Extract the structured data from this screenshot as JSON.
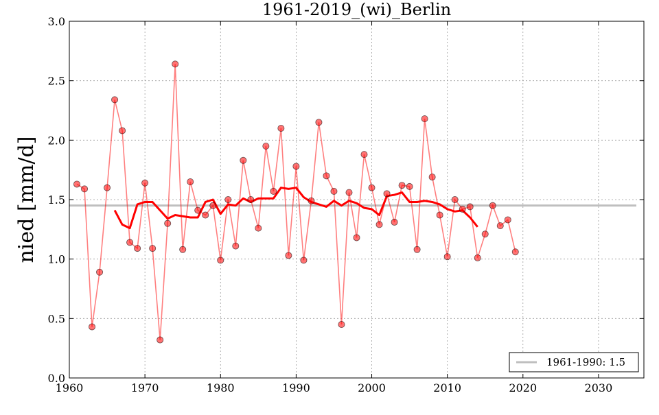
{
  "chart_data": {
    "type": "line",
    "title": "1961-2019_(wi)_Berlin",
    "xlabel": "",
    "ylabel": "nied [mm/d]",
    "xlim": [
      1960,
      2036
    ],
    "ylim": [
      0.0,
      3.0
    ],
    "xticks": [
      1960,
      1970,
      1980,
      1990,
      2000,
      2010,
      2020,
      2030
    ],
    "yticks": [
      "0.0",
      "0.5",
      "1.0",
      "1.5",
      "2.0",
      "2.5",
      "3.0"
    ],
    "grid": true,
    "legend_position": "bottom-right",
    "series": [
      {
        "name": "",
        "kind": "line-markers",
        "color": "#ff0000",
        "x": [
          1961,
          1962,
          1963,
          1964,
          1965,
          1966,
          1967,
          1968,
          1969,
          1970,
          1971,
          1972,
          1973,
          1974,
          1975,
          1976,
          1977,
          1978,
          1979,
          1980,
          1981,
          1982,
          1983,
          1984,
          1985,
          1986,
          1987,
          1988,
          1989,
          1990,
          1991,
          1992,
          1993,
          1994,
          1995,
          1996,
          1997,
          1998,
          1999,
          2000,
          2001,
          2002,
          2003,
          2004,
          2005,
          2006,
          2007,
          2008,
          2009,
          2010,
          2011,
          2012,
          2013,
          2014,
          2015,
          2016,
          2017,
          2018,
          2019
        ],
        "y": [
          1.63,
          1.59,
          0.43,
          0.89,
          1.6,
          2.34,
          2.08,
          1.14,
          1.09,
          1.64,
          1.09,
          0.32,
          1.3,
          2.64,
          1.08,
          1.65,
          1.41,
          1.37,
          1.45,
          0.99,
          1.5,
          1.11,
          1.83,
          1.5,
          1.26,
          1.95,
          1.57,
          2.1,
          1.03,
          1.78,
          0.99,
          1.49,
          2.15,
          1.7,
          1.57,
          0.45,
          1.56,
          1.18,
          1.88,
          1.6,
          1.29,
          1.55,
          1.31,
          1.62,
          1.61,
          1.08,
          2.18,
          1.69,
          1.37,
          1.02,
          1.5,
          1.42,
          1.44,
          1.01,
          1.21,
          1.45,
          1.28,
          1.33,
          1.06
        ]
      },
      {
        "name": "",
        "kind": "moving-average",
        "color": "#ff0000",
        "x": [
          1966,
          1967,
          1968,
          1969,
          1970,
          1971,
          1972,
          1973,
          1974,
          1975,
          1976,
          1977,
          1978,
          1979,
          1980,
          1981,
          1982,
          1983,
          1984,
          1985,
          1986,
          1987,
          1988,
          1989,
          1990,
          1991,
          1992,
          1993,
          1994,
          1995,
          1996,
          1997,
          1998,
          1999,
          2000,
          2001,
          2002,
          2003,
          2004,
          2005,
          2006,
          2007,
          2008,
          2009,
          2010,
          2011,
          2012,
          2013,
          2014
        ],
        "y": [
          1.41,
          1.29,
          1.26,
          1.46,
          1.48,
          1.48,
          1.41,
          1.34,
          1.37,
          1.36,
          1.35,
          1.35,
          1.48,
          1.5,
          1.38,
          1.46,
          1.45,
          1.51,
          1.48,
          1.51,
          1.51,
          1.51,
          1.6,
          1.59,
          1.6,
          1.52,
          1.48,
          1.46,
          1.44,
          1.49,
          1.45,
          1.49,
          1.47,
          1.43,
          1.42,
          1.37,
          1.53,
          1.54,
          1.56,
          1.48,
          1.48,
          1.49,
          1.48,
          1.46,
          1.42,
          1.4,
          1.41,
          1.35,
          1.27
        ]
      },
      {
        "name": "1961-1990: 1.5",
        "kind": "reference-line",
        "color": "#bfbfbf",
        "x": [
          1960,
          2035
        ],
        "y": [
          1.45,
          1.45
        ]
      }
    ]
  }
}
